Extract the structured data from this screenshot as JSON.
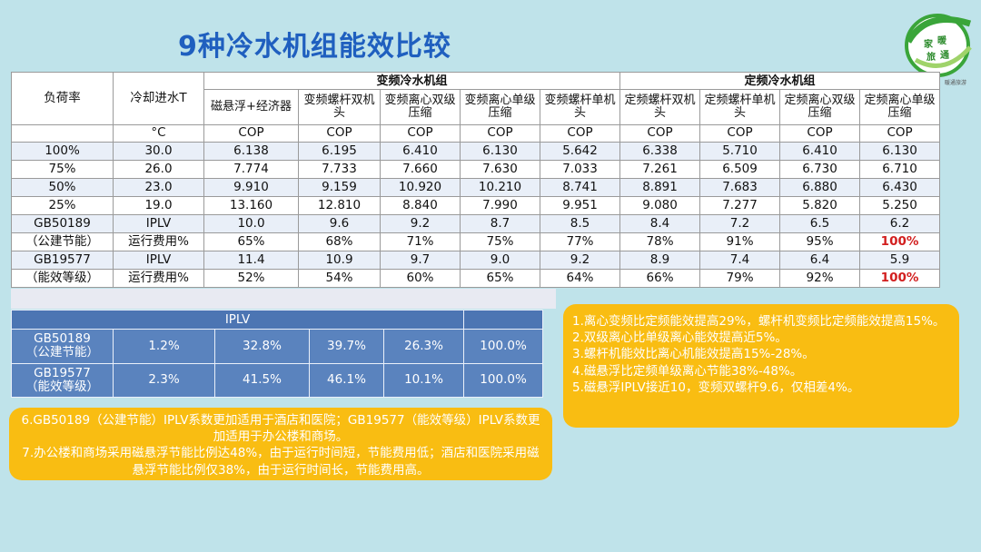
{
  "title": "9种冷水机组能效比较",
  "logo": {
    "char1": "家",
    "char2": "暖",
    "char3": "旅",
    "char4": "通",
    "tiny": "暖通旅游"
  },
  "main_table": {
    "col_load": "负荷率",
    "col_temp": "冷却进水T",
    "group_var": "变频冷水机组",
    "group_fixed": "定频冷水机组",
    "types": [
      "磁悬浮+经济器",
      "变频螺杆双机头",
      "变频离心双级压缩",
      "变频离心单级压缩",
      "变频螺杆单机头",
      "定频螺杆双机头",
      "定频螺杆单机头",
      "定频离心双级压缩",
      "定频离心单级压缩"
    ],
    "unit_temp": "°C",
    "unit_cop": "COP",
    "rows": [
      {
        "c0": "100%",
        "c1": "30.0",
        "v": [
          "6.138",
          "6.195",
          "6.410",
          "6.130",
          "5.642",
          "6.338",
          "5.710",
          "6.410",
          "6.130"
        ]
      },
      {
        "c0": "75%",
        "c1": "26.0",
        "v": [
          "7.774",
          "7.733",
          "7.660",
          "7.630",
          "7.033",
          "7.261",
          "6.509",
          "6.730",
          "6.710"
        ]
      },
      {
        "c0": "50%",
        "c1": "23.0",
        "v": [
          "9.910",
          "9.159",
          "10.920",
          "10.210",
          "8.741",
          "8.891",
          "7.683",
          "6.880",
          "6.430"
        ]
      },
      {
        "c0": "25%",
        "c1": "19.0",
        "v": [
          "13.160",
          "12.810",
          "8.840",
          "7.990",
          "9.951",
          "9.080",
          "7.277",
          "5.820",
          "5.250"
        ]
      },
      {
        "c0": "GB50189",
        "c1": "IPLV",
        "v": [
          "10.0",
          "9.6",
          "9.2",
          "8.7",
          "8.5",
          "8.4",
          "7.2",
          "6.5",
          "6.2"
        ]
      },
      {
        "c0": "（公建节能）",
        "c1": "运行费用%",
        "v": [
          "65%",
          "68%",
          "71%",
          "75%",
          "77%",
          "78%",
          "91%",
          "95%",
          "100%"
        ]
      },
      {
        "c0": "GB19577",
        "c1": "IPLV",
        "v": [
          "11.4",
          "10.9",
          "9.7",
          "9.0",
          "9.2",
          "8.9",
          "7.4",
          "6.4",
          "5.9"
        ]
      },
      {
        "c0": "（能效等级）",
        "c1": "运行费用%",
        "v": [
          "52%",
          "54%",
          "60%",
          "65%",
          "64%",
          "66%",
          "79%",
          "92%",
          "100%"
        ]
      }
    ]
  },
  "blue_table": {
    "header": "IPLV",
    "rows": [
      {
        "l1": "GB50189",
        "l2": "（公建节能）",
        "v": [
          "1.2%",
          "32.8%",
          "39.7%",
          "26.3%",
          "100.0%"
        ]
      },
      {
        "l1": "GB19577",
        "l2": "（能效等级）",
        "v": [
          "2.3%",
          "41.5%",
          "46.1%",
          "10.1%",
          "100.0%"
        ]
      }
    ]
  },
  "notes_right": [
    "1.离心变频比定频能效提高29%，螺杆机变频比定频能效提高15%。",
    "2.双级离心比单级离心能效提高近5%。",
    "3.螺杆机能效比离心机能效提高15%-28%。",
    "4.磁悬浮比定频单级离心节能38%-48%。",
    "5.磁悬浮IPLV接近10，变频双螺杆9.6，仅相差4%。"
  ],
  "notes_left": [
    "6.GB50189（公建节能）IPLV系数更加适用于酒店和医院；GB19577（能效等级）IPLV系数更加适用于办公楼和商场。",
    "7.办公楼和商场采用磁悬浮节能比例达48%，由于运行时间短，节能费用低；酒店和医院采用磁悬浮节能比例仅38%，由于运行时间长，节能费用高。"
  ],
  "colors": {
    "title": "#1f5fbf",
    "highlight": "#d21f1f",
    "note_box": "#f9bd12",
    "blue_table": "#5a83be",
    "background": "#bfe3ea"
  }
}
